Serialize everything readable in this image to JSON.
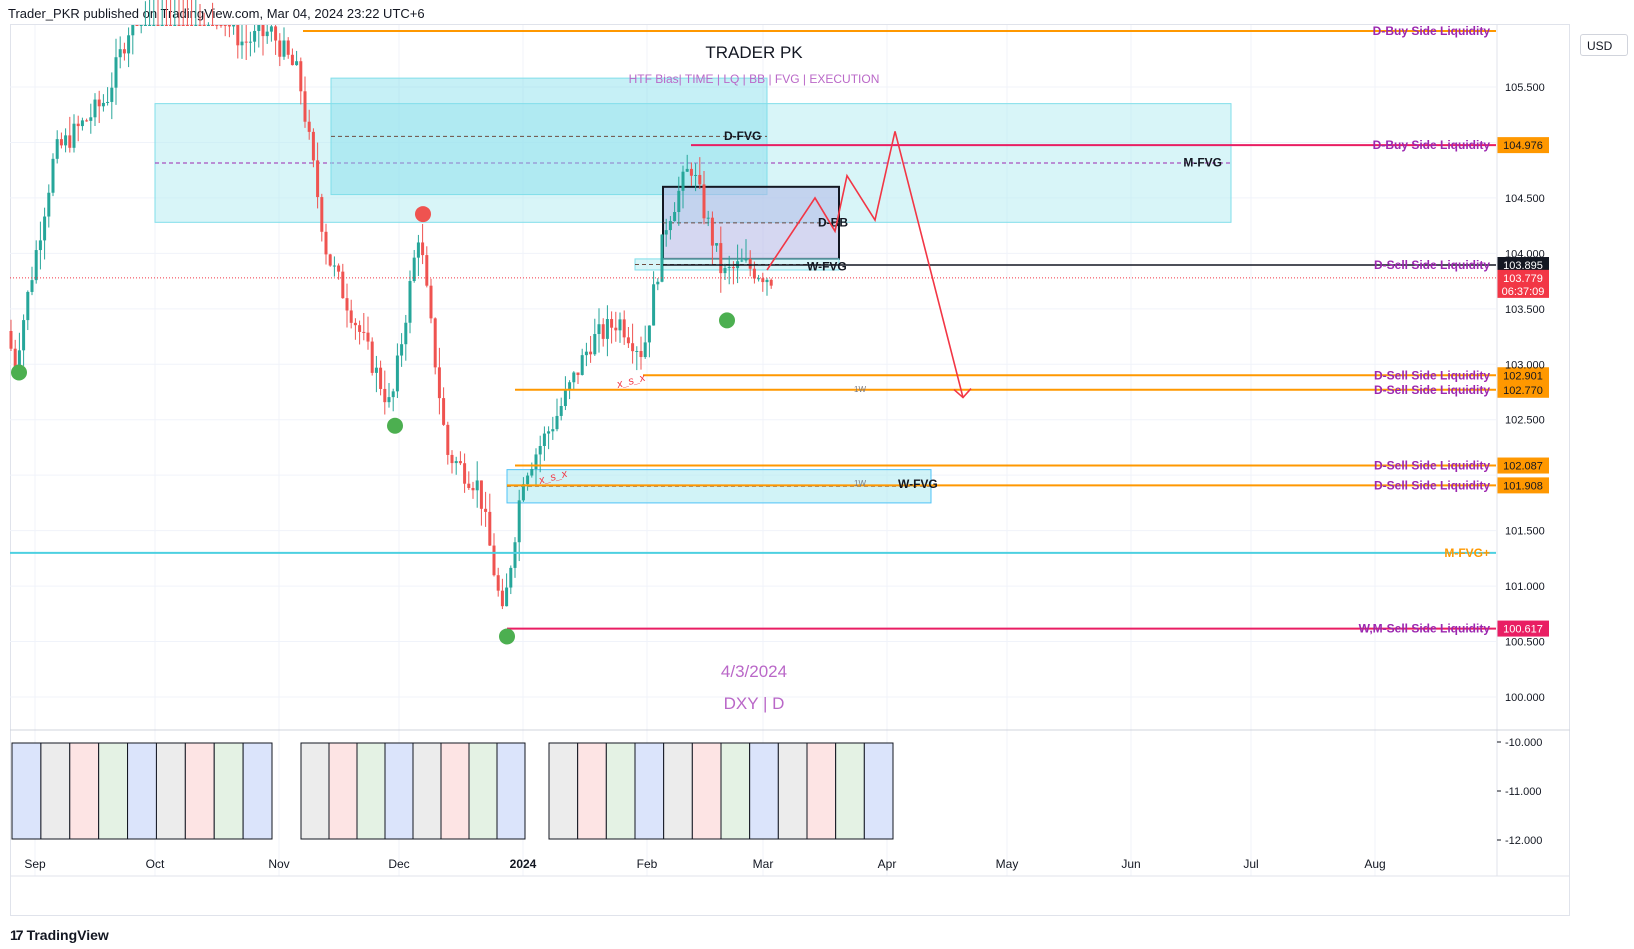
{
  "header": {
    "publisher_text": "Trader_PKR published on TradingView.com, Mar 04, 2024 23:22 UTC+6"
  },
  "footer": {
    "brand": "TradingView"
  },
  "price_scale": {
    "currency": "USD"
  },
  "colors": {
    "bull": "#26a69a",
    "bear": "#ef5350",
    "orange": "#ff9800",
    "magenta": "#9c27b0",
    "crimson": "#e91e63",
    "teal": "#4dd0e1",
    "zone_fill": "#b2ebf2",
    "bb_fill": "#b3b7e6",
    "arrow": "#f23645"
  },
  "chart_data": {
    "type": "candlestick",
    "title": "TRADER PK",
    "subtitle": "HTF Bias| TIME  |  LQ  |  BB  |  FVG  | EXECUTION",
    "date_label": "4/3/2024",
    "symbol_label": "DXY | D",
    "y_ticks": [
      "105.500",
      "104.500",
      "104.000",
      "103.500",
      "103.000",
      "102.500",
      "101.500",
      "101.000",
      "100.500",
      "100.000"
    ],
    "y_range": [
      99.7,
      105.9
    ],
    "x_ticks": [
      "Sep",
      "Oct",
      "Nov",
      "Dec",
      "2024",
      "Feb",
      "Mar",
      "Apr",
      "May",
      "Jun",
      "Jul",
      "Aug"
    ],
    "oscillator_ticks": [
      "-10.000",
      "-11.000",
      "-12.000"
    ],
    "levels": [
      {
        "label": "D-Buy Side Liquidity",
        "value": 105.9,
        "color": "#ff9800",
        "labelColor": "#9c27b0",
        "tag": ""
      },
      {
        "label": "D-Buy Side Liquidity",
        "value": 104.976,
        "color": "#e91e63",
        "labelColor": "#9c27b0",
        "tag": "104.976",
        "tagColor": "#ff9800"
      },
      {
        "label": "D-Sell Side Liquidity",
        "value": 103.895,
        "color": "#131722",
        "labelColor": "#9c27b0",
        "tag": "103.895",
        "tagColor": "#131722"
      },
      {
        "label": "D-Sell Side Liquidity",
        "value": 102.901,
        "color": "#ff9800",
        "labelColor": "#9c27b0",
        "tag": "102.901",
        "tagColor": "#ff9800"
      },
      {
        "label": "D-Sell Side Liquidity",
        "value": 102.77,
        "color": "#ff9800",
        "labelColor": "#9c27b0",
        "tag": "102.770",
        "tagColor": "#ff9800"
      },
      {
        "label": "D-Sell Side Liquidity",
        "value": 102.087,
        "color": "#ff9800",
        "labelColor": "#9c27b0",
        "tag": "102.087",
        "tagColor": "#ff9800"
      },
      {
        "label": "D-Sell Side Liquidity",
        "value": 101.908,
        "color": "#ff9800",
        "labelColor": "#9c27b0",
        "tag": "101.908",
        "tagColor": "#ff9800"
      },
      {
        "label": "M-FVG+",
        "value": 101.3,
        "color": "#4dd0e1",
        "labelColor": "#ff9800",
        "tag": ""
      },
      {
        "label": "W,M-Sell Side Liquidity",
        "value": 100.617,
        "color": "#e91e63",
        "labelColor": "#9c27b0",
        "tag": "100.617",
        "tagColor": "#e91e63"
      }
    ],
    "current_price": {
      "value": 103.779,
      "tag": "103.779",
      "countdown": "06:37:09"
    },
    "zones": [
      {
        "label": "M-FVG",
        "top": 105.35,
        "bottom": 104.28,
        "start": "2023-10-01",
        "end": "2024-06-26"
      },
      {
        "label": "D-FVG",
        "top": 105.58,
        "bottom": 104.53,
        "start": "2023-11-14",
        "end": "2024-03-02"
      },
      {
        "label": "D-BB",
        "top": 104.6,
        "bottom": 103.95,
        "start": "2024-02-05",
        "end": "2024-03-20"
      },
      {
        "label": "W-FVG",
        "top": 103.95,
        "bottom": 103.85,
        "start": "2024-01-29",
        "end": "2024-03-20"
      },
      {
        "label": "W-FVG",
        "top": 102.05,
        "bottom": 101.75,
        "start": "2023-12-28",
        "end": "2024-04-12"
      }
    ],
    "swing_points": [
      {
        "date": "2023-08-28",
        "value": 102.98,
        "type": "low"
      },
      {
        "date": "2023-11-30",
        "value": 102.5,
        "type": "low"
      },
      {
        "date": "2023-12-07",
        "value": 104.3,
        "type": "high"
      },
      {
        "date": "2023-12-28",
        "value": 100.6,
        "type": "low"
      },
      {
        "date": "2024-02-21",
        "value": 103.45,
        "type": "low"
      }
    ],
    "projection": [
      [
        "2024-03-02",
        103.85
      ],
      [
        "2024-03-14",
        104.5
      ],
      [
        "2024-03-19",
        104.2
      ],
      [
        "2024-03-22",
        104.7
      ],
      [
        "2024-03-29",
        104.3
      ],
      [
        "2024-04-03",
        105.1
      ],
      [
        "2024-04-20",
        102.7
      ]
    ],
    "annotations": [
      "x_s_x",
      "x_s_x",
      "1W",
      "1W"
    ]
  }
}
